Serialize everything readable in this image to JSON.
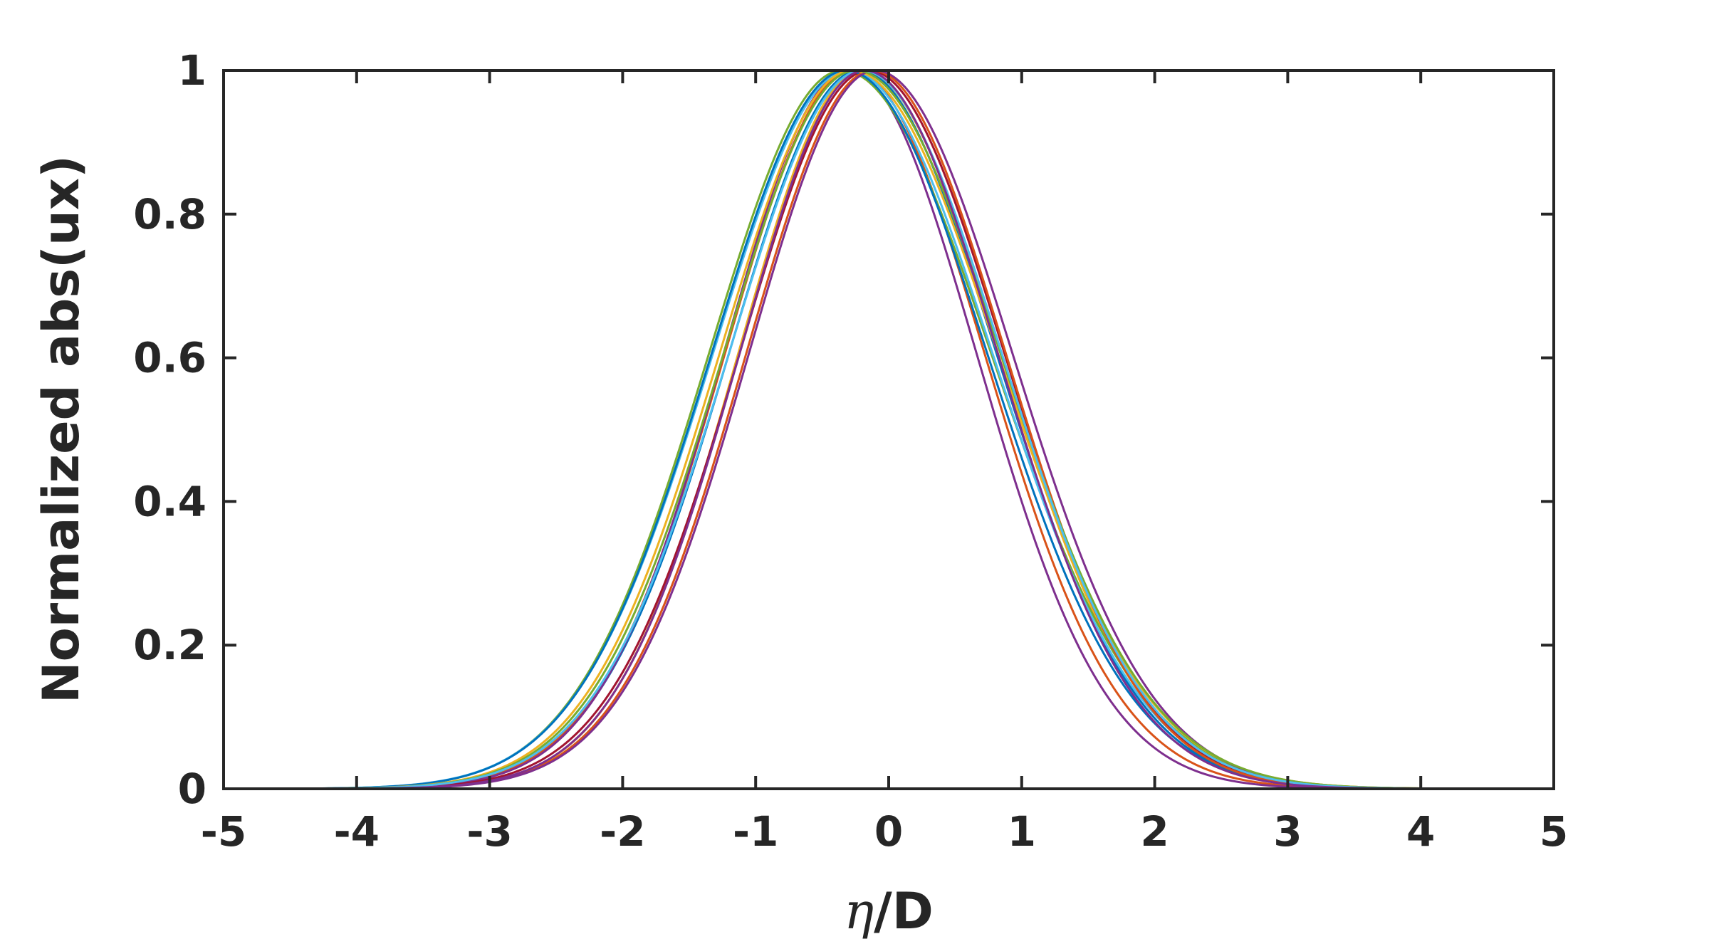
{
  "chart_data": {
    "type": "line",
    "title": "",
    "xlabel_symbol": "η",
    "xlabel_rest": "/D",
    "ylabel": "Normalized abs(ux)",
    "xlim": [
      -5,
      5
    ],
    "ylim": [
      0,
      1
    ],
    "xticks": [
      -5,
      -4,
      -3,
      -2,
      -1,
      0,
      1,
      2,
      3,
      4,
      5
    ],
    "xtick_labels": [
      "-5",
      "-4",
      "-3",
      "-2",
      "-1",
      "0",
      "1",
      "2",
      "3",
      "4",
      "5"
    ],
    "yticks": [
      0,
      0.2,
      0.4,
      0.6,
      0.8,
      1
    ],
    "ytick_labels": [
      "0",
      "0.2",
      "0.4",
      "0.6",
      "0.8",
      "1"
    ],
    "grid": false,
    "legend": false,
    "x_range": [
      -4.8,
      5
    ],
    "series": [
      {
        "color": "#0072BD",
        "peak_x": -0.22,
        "sigma_left": 0.98,
        "sigma_right": 1.03
      },
      {
        "color": "#D95319",
        "peak_x": -0.27,
        "sigma_left": 0.96,
        "sigma_right": 0.99
      },
      {
        "color": "#EDB120",
        "peak_x": -0.2,
        "sigma_left": 0.93,
        "sigma_right": 1.04
      },
      {
        "color": "#7E2F8E",
        "peak_x": -0.3,
        "sigma_left": 0.94,
        "sigma_right": 0.96
      },
      {
        "color": "#77AC30",
        "peak_x": -0.35,
        "sigma_left": 1.0,
        "sigma_right": 1.12
      },
      {
        "color": "#4DBEEE",
        "peak_x": -0.3,
        "sigma_left": 1.02,
        "sigma_right": 1.08
      },
      {
        "color": "#A2142F",
        "peak_x": -0.15,
        "sigma_left": 0.97,
        "sigma_right": 1.02
      },
      {
        "color": "#0072BD",
        "peak_x": -0.32,
        "sigma_left": 1.01,
        "sigma_right": 1.06
      },
      {
        "color": "#D95319",
        "peak_x": -0.12,
        "sigma_left": 0.95,
        "sigma_right": 1.0
      },
      {
        "color": "#EDB120",
        "peak_x": -0.28,
        "sigma_left": 0.99,
        "sigma_right": 1.1
      },
      {
        "color": "#7E2F8E",
        "peak_x": -0.1,
        "sigma_left": 0.95,
        "sigma_right": 1.03
      },
      {
        "color": "#77AC30",
        "peak_x": -0.25,
        "sigma_left": 0.99,
        "sigma_right": 1.09
      },
      {
        "color": "#4DBEEE",
        "peak_x": -0.2,
        "sigma_left": 1.0,
        "sigma_right": 1.05
      },
      {
        "color": "#7E2F8E",
        "peak_x": -0.18,
        "sigma_left": 0.94,
        "sigma_right": 1.0
      }
    ]
  }
}
